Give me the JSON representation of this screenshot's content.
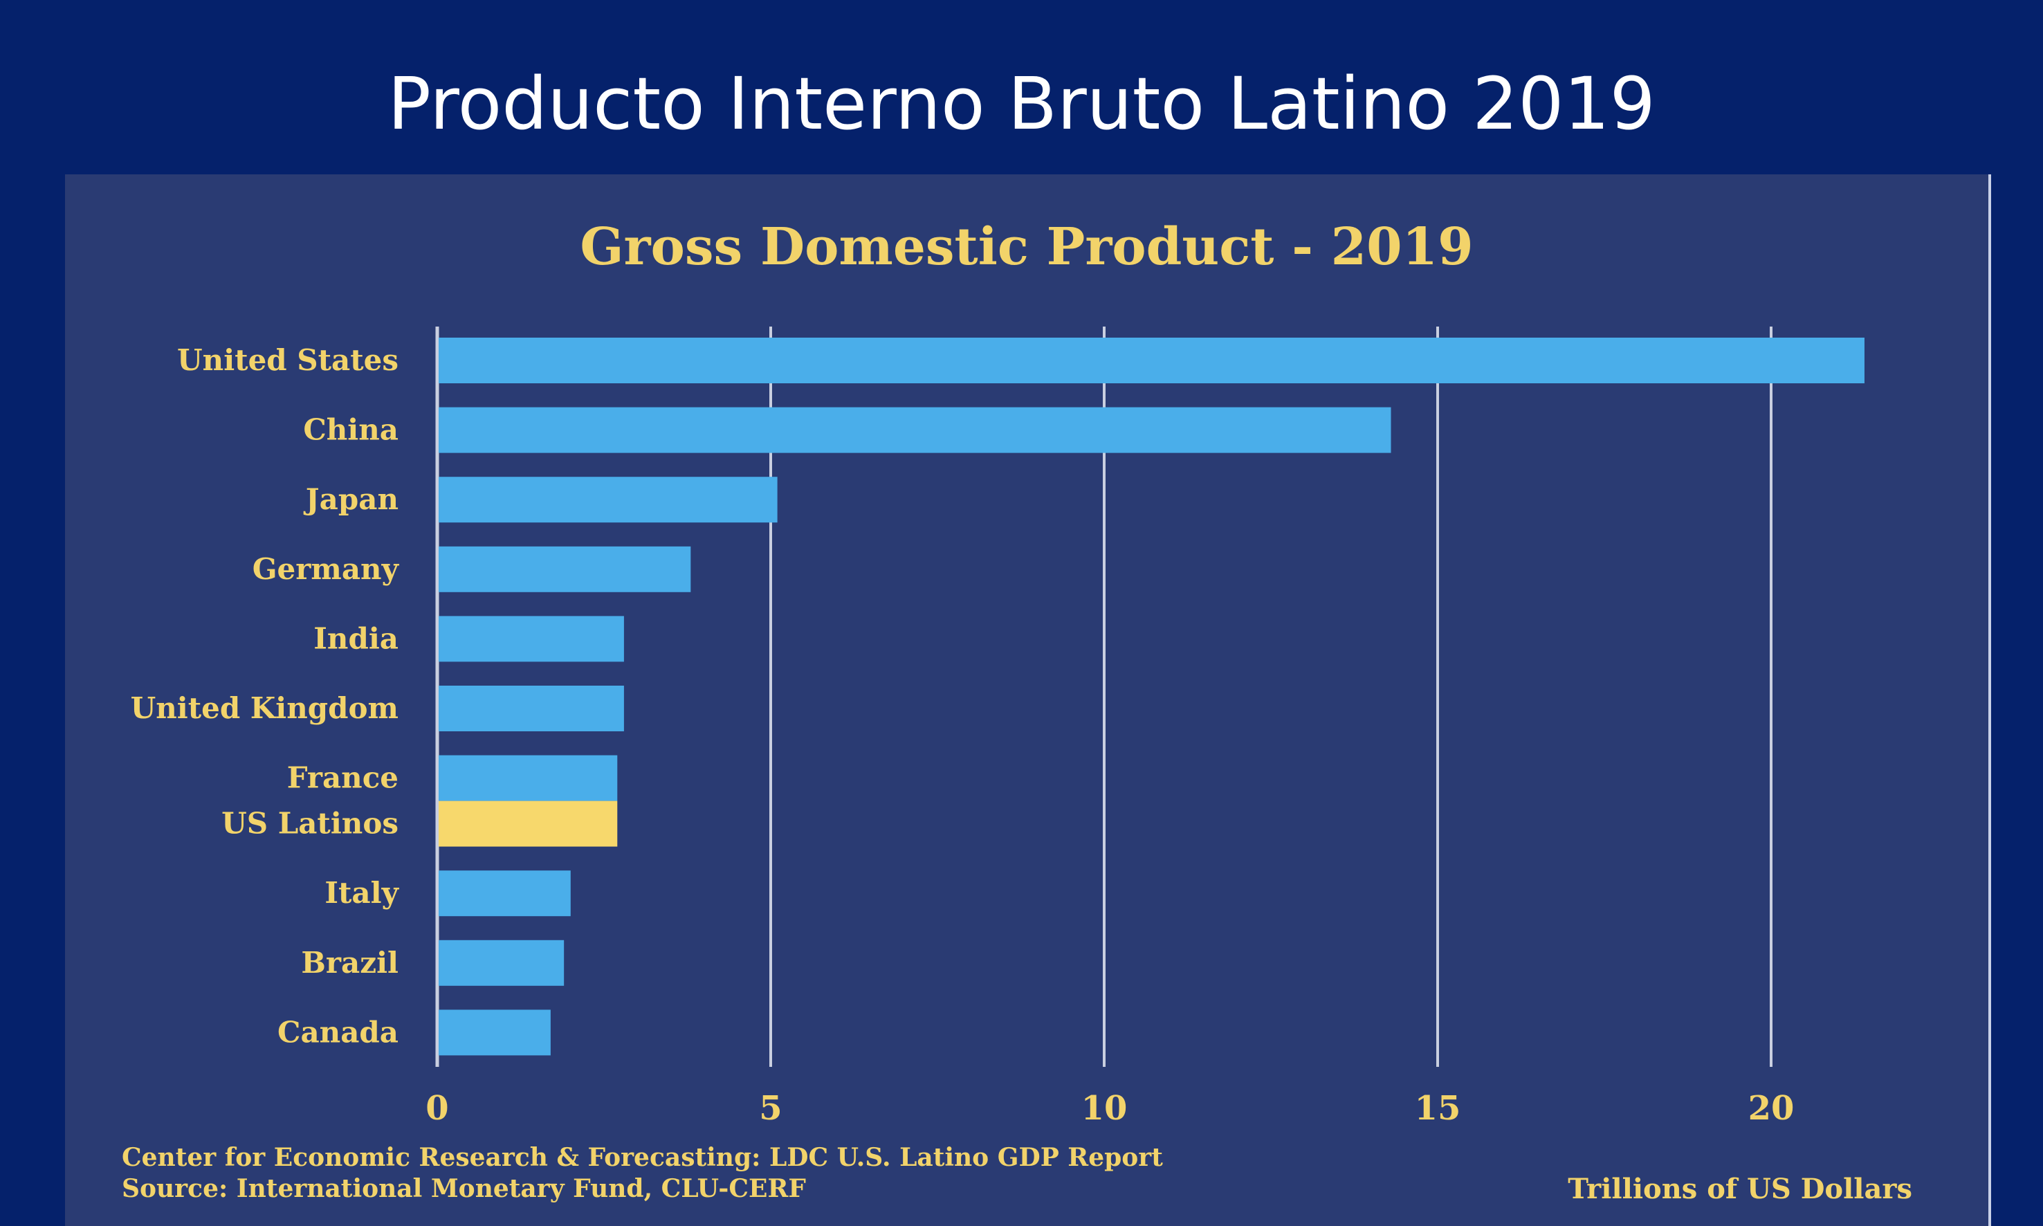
{
  "slide": {
    "title": "Producto Interno Bruto Latino 2019"
  },
  "footer": {
    "credit": "Center for Economic Research & Forecasting: LDC U.S.  Latino GDP Report",
    "source": "Source: International Monetary Fund, CLU-CERF",
    "units": "Trillions of US Dollars"
  },
  "colors": {
    "background": "#05216b",
    "panel": "#2a3b73",
    "bar": "#4aaeea",
    "highlight_bar": "#f7d86c",
    "label": "#f2d36a",
    "gridline": "#c9cfe0"
  },
  "chart_data": {
    "type": "bar",
    "orientation": "horizontal",
    "title": "Gross Domestic Product - 2019",
    "xlabel": "Trillions of US Dollars",
    "ylabel": "",
    "categories": [
      "United States",
      "China",
      "Japan",
      "Germany",
      "India",
      "United Kingdom",
      "France",
      "US Latinos",
      "Italy",
      "Brazil",
      "Canada"
    ],
    "values": [
      21.4,
      14.3,
      5.1,
      3.8,
      2.8,
      2.8,
      2.7,
      2.7,
      2.0,
      1.9,
      1.7
    ],
    "highlight": [
      "US Latinos"
    ],
    "xlim": [
      0,
      20.5
    ],
    "xticks": [
      0,
      5,
      10,
      15,
      20
    ],
    "grid": "vertical"
  }
}
